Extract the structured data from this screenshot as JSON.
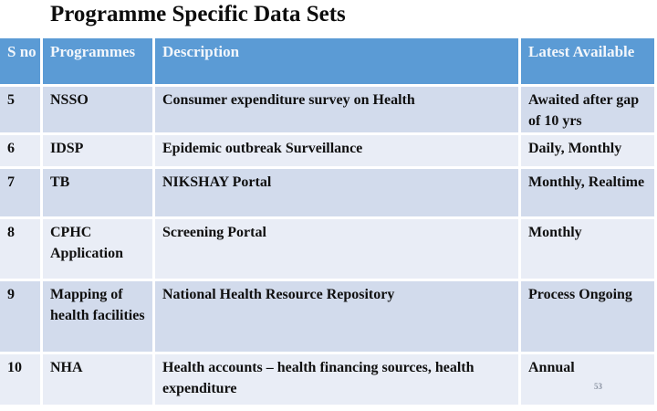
{
  "slide": {
    "title": "Programme Specific Data Sets",
    "page_number": "53"
  },
  "colors": {
    "header_bg": "#5B9BD5",
    "row_odd_bg": "#D2DBEC",
    "row_even_bg": "#E9EDF6",
    "header_text": "#F2F6FB",
    "body_text": "#101010",
    "page_num": "#8C94A3"
  },
  "table": {
    "columns": [
      "S no",
      "Programmes",
      "Description",
      "Latest Available"
    ],
    "rows": [
      {
        "sno": "5",
        "programme": "NSSO",
        "description": "Consumer expenditure survey on Health",
        "latest": "Awaited after gap of 10 yrs"
      },
      {
        "sno": "6",
        "programme": "IDSP",
        "description": "Epidemic outbreak Surveillance",
        "latest": "Daily, Monthly"
      },
      {
        "sno": "7",
        "programme": "TB",
        "description": "NIKSHAY Portal",
        "latest": "Monthly, Realtime"
      },
      {
        "sno": "8",
        "programme": "CPHC Application",
        "description": "Screening Portal",
        "latest": "Monthly"
      },
      {
        "sno": "9",
        "programme": "Mapping of health facilities",
        "description": "National Health Resource Repository",
        "latest": "Process Ongoing"
      },
      {
        "sno": "10",
        "programme": "NHA",
        "description": "Health accounts – health financing sources, health expenditure",
        "latest": "Annual"
      }
    ]
  }
}
